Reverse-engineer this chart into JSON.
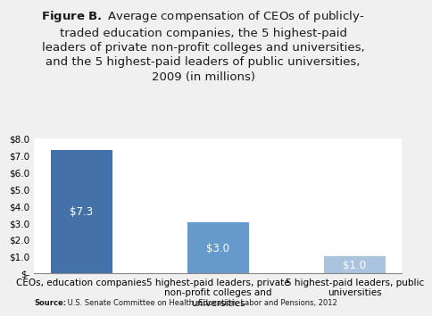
{
  "categories": [
    "CEOs, education companies",
    "5 highest-paid leaders, private\nnon-profit colleges and\nuniversities",
    "5 highest-paid leaders, public\nuniversities"
  ],
  "values": [
    7.3,
    3.0,
    1.0
  ],
  "bar_colors": [
    "#4472a8",
    "#6699cc",
    "#aac4e0"
  ],
  "bar_labels": [
    "$7.3",
    "$3.0",
    "$1.0"
  ],
  "ylim": [
    0,
    8.0
  ],
  "yticks": [
    0,
    1.0,
    2.0,
    3.0,
    4.0,
    5.0,
    6.0,
    7.0,
    8.0
  ],
  "ytick_labels": [
    "$-",
    "$1.0",
    "$2.0",
    "$3.0",
    "$4.0",
    "$5.0",
    "$6.0",
    "$7.0",
    "$8.0"
  ],
  "title_bold": "Figure B.",
  "title_normal": " Average compensation of CEOs of publicly-\ntraded education companies, the 5 highest-paid\nleaders of private non-profit colleges and universities,\nand the 5 highest-paid leaders of public universities,\n2009 (in millions)",
  "source_bold": "Source:",
  "source_normal": " U.S. Senate Committee on Health, Education, Labor and Pensions, 2012",
  "background_color": "#f0f0f0",
  "plot_bg_color": "#ffffff",
  "title_fontsize": 9.5,
  "label_fontsize": 7.5,
  "source_fontsize": 6.0,
  "bar_label_fontsize": 8.5
}
